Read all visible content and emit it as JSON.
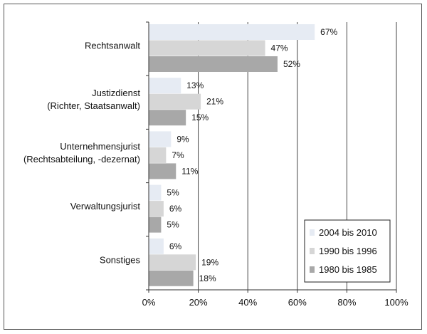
{
  "chart_data": {
    "type": "bar",
    "orientation": "horizontal",
    "title": "",
    "xlabel": "",
    "ylabel": "",
    "xlim": [
      0,
      100
    ],
    "x_ticks": [
      "0%",
      "20%",
      "40%",
      "60%",
      "80%",
      "100%"
    ],
    "grid": "vertical",
    "legend_position": "bottom-right",
    "categories": [
      [
        "Rechtsanwalt"
      ],
      [
        "Justizdienst",
        "(Richter, Staatsanwalt)"
      ],
      [
        "Unternehmensjurist",
        "(Rechtsabteilung, -dezernat)"
      ],
      [
        "Verwaltungsjurist"
      ],
      [
        "Sonstiges"
      ]
    ],
    "series": [
      {
        "name": "2004 bis 2010",
        "color": "#e6ebf3",
        "values": [
          67,
          13,
          9,
          5,
          6
        ],
        "labels": [
          "67%",
          "13%",
          "9%",
          "5%",
          "6%"
        ]
      },
      {
        "name": "1990 bis 1996",
        "color": "#d6d6d6",
        "values": [
          47,
          21,
          7,
          6,
          19
        ],
        "labels": [
          "47%",
          "21%",
          "7%",
          "6%",
          "19%"
        ]
      },
      {
        "name": "1980 bis 1985",
        "color": "#a8a8a8",
        "values": [
          52,
          15,
          11,
          5,
          18
        ],
        "labels": [
          "52%",
          "15%",
          "11%",
          "5%",
          "18%"
        ]
      }
    ]
  }
}
